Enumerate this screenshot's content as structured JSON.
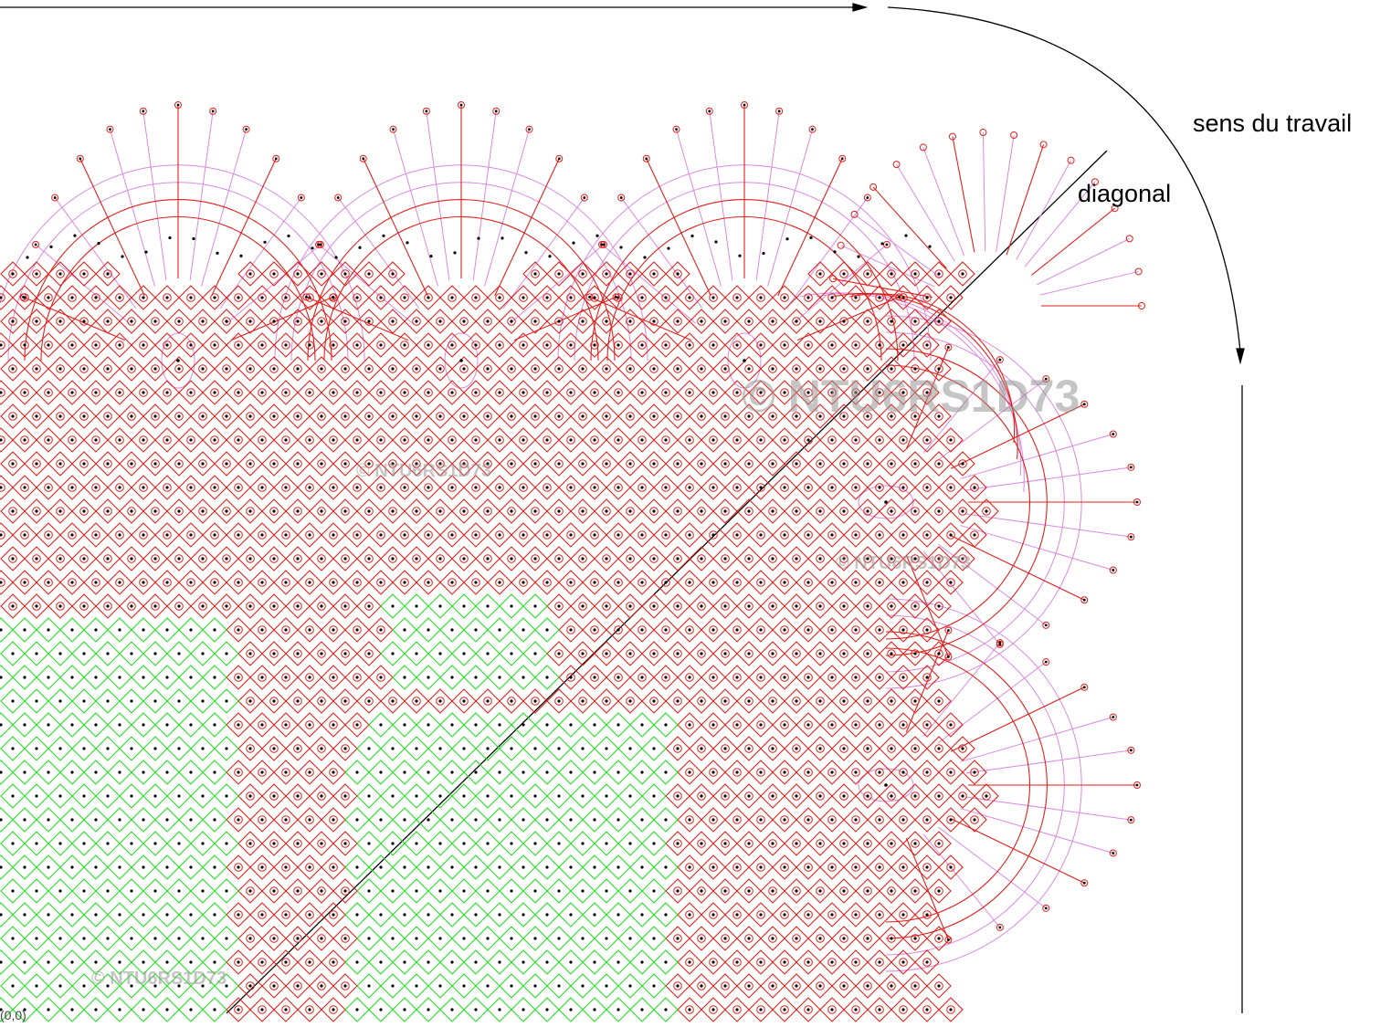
{
  "labels": {
    "sens_du_travail": "sens du travail",
    "diagonal": "diagonal",
    "corner_fragment": "(0,0)"
  },
  "watermark": "© NTU6RS1D73",
  "colors": {
    "background": "#ffffff",
    "ground_red": "#e0201c",
    "fan_violet": "#d98ae0",
    "cloth_green": "#22dd22",
    "axis_black": "#000000",
    "watermark_grey": "#969696"
  }
}
